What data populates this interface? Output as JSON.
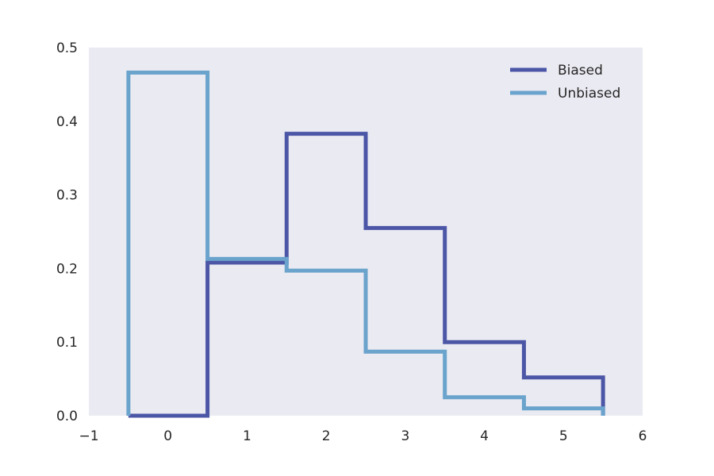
{
  "chart_data": {
    "type": "step",
    "xlim": [
      -1,
      6
    ],
    "ylim": [
      0,
      0.5
    ],
    "xticks": [
      -1,
      0,
      1,
      2,
      3,
      4,
      5,
      6
    ],
    "xtick_labels": [
      "−1",
      "0",
      "1",
      "2",
      "3",
      "4",
      "5",
      "6"
    ],
    "yticks": [
      0.0,
      0.1,
      0.2,
      0.3,
      0.4,
      0.5
    ],
    "ytick_labels": [
      "0.0",
      "0.1",
      "0.2",
      "0.3",
      "0.4",
      "0.5"
    ],
    "grid": false,
    "background": "#eaeaf2",
    "legend_position": "top-right",
    "categories": [
      0,
      1,
      2,
      3,
      4,
      5
    ],
    "series": [
      {
        "name": "Biased",
        "color": "#4c56a6",
        "values": [
          0.0,
          0.208,
          0.383,
          0.255,
          0.1,
          0.052
        ]
      },
      {
        "name": "Unbiased",
        "color": "#6aa3cc",
        "values": [
          0.466,
          0.213,
          0.197,
          0.087,
          0.025,
          0.01
        ]
      }
    ]
  }
}
